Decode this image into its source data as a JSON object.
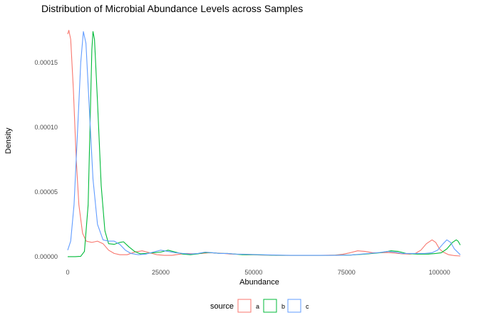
{
  "chart_data": {
    "type": "line",
    "title": "Distribution of Microbial Abundance Levels across Samples",
    "xlabel": "Abundance",
    "ylabel": "Density",
    "xlim": [
      -2500,
      106000
    ],
    "ylim": [
      -5e-06,
      0.000183
    ],
    "x_ticks": [
      0,
      25000,
      50000,
      75000,
      100000
    ],
    "x_tick_labels": [
      "0",
      "25000",
      "50000",
      "75000",
      "100000"
    ],
    "y_ticks": [
      0,
      5e-05,
      0.0001,
      0.00015
    ],
    "y_tick_labels": [
      "0.00000",
      "0.00005",
      "0.00010",
      "0.00015"
    ],
    "grid": false,
    "legend": {
      "title": "source",
      "position": "bottom",
      "items": [
        {
          "label": "a",
          "color": "#F8766D"
        },
        {
          "label": "b",
          "color": "#00BA38"
        },
        {
          "label": "c",
          "color": "#619CFF"
        }
      ]
    },
    "series": [
      {
        "name": "a",
        "color": "#F8766D",
        "points": [
          [
            0,
            0.000172
          ],
          [
            300,
            0.000175
          ],
          [
            800,
            0.000168
          ],
          [
            1500,
            0.00013
          ],
          [
            2300,
            7.5e-05
          ],
          [
            3000,
            4e-05
          ],
          [
            4000,
            1.8e-05
          ],
          [
            5000,
            1.2e-05
          ],
          [
            6500,
            1.1e-05
          ],
          [
            8000,
            1.2e-05
          ],
          [
            9500,
            1e-05
          ],
          [
            11000,
            5e-06
          ],
          [
            12500,
            2.5e-06
          ],
          [
            14000,
            1.5e-06
          ],
          [
            16000,
            1.5e-06
          ],
          [
            18000,
            3.5e-06
          ],
          [
            20000,
            4.5e-06
          ],
          [
            22000,
            3e-06
          ],
          [
            24000,
            1.5e-06
          ],
          [
            26000,
            1e-06
          ],
          [
            28000,
            1e-06
          ],
          [
            30000,
            1.8e-06
          ],
          [
            32000,
            2.5e-06
          ],
          [
            34000,
            2.2e-06
          ],
          [
            36000,
            2.5e-06
          ],
          [
            38000,
            3e-06
          ],
          [
            40000,
            2.8e-06
          ],
          [
            42000,
            2.5e-06
          ],
          [
            44000,
            2e-06
          ],
          [
            46000,
            1.8e-06
          ],
          [
            48000,
            1.5e-06
          ],
          [
            50000,
            1.5e-06
          ],
          [
            52000,
            1.2e-06
          ],
          [
            54000,
            1.2e-06
          ],
          [
            56000,
            1e-06
          ],
          [
            60000,
            1e-06
          ],
          [
            64000,
            1e-06
          ],
          [
            68000,
            1e-06
          ],
          [
            72000,
            1.2e-06
          ],
          [
            74000,
            1.8e-06
          ],
          [
            76000,
            3e-06
          ],
          [
            78000,
            4.5e-06
          ],
          [
            80000,
            4e-06
          ],
          [
            82000,
            3e-06
          ],
          [
            84000,
            3e-06
          ],
          [
            86000,
            3.2e-06
          ],
          [
            88000,
            2.8e-06
          ],
          [
            90000,
            2.2e-06
          ],
          [
            92000,
            2e-06
          ],
          [
            93500,
            2.5e-06
          ],
          [
            95000,
            5e-06
          ],
          [
            96500,
            1e-05
          ],
          [
            98000,
            1.3e-05
          ],
          [
            99000,
            1.1e-05
          ],
          [
            100000,
            6e-06
          ],
          [
            101000,
            3.5e-06
          ],
          [
            102500,
            1.5e-06
          ],
          [
            104000,
            8e-07
          ],
          [
            105600,
            5e-07
          ]
        ]
      },
      {
        "name": "b",
        "color": "#00BA38",
        "points": [
          [
            0,
            0.0
          ],
          [
            2000,
            0.0
          ],
          [
            3500,
            3e-07
          ],
          [
            4500,
            4e-06
          ],
          [
            5500,
            4e-05
          ],
          [
            6000,
            0.0001
          ],
          [
            6500,
            0.00016
          ],
          [
            6800,
            0.000174
          ],
          [
            7200,
            0.000168
          ],
          [
            8000,
            0.00012
          ],
          [
            9000,
            5.5e-05
          ],
          [
            10000,
            2e-05
          ],
          [
            11000,
            1e-05
          ],
          [
            12500,
            9.5e-06
          ],
          [
            14000,
            1.1e-05
          ],
          [
            15000,
            1.15e-05
          ],
          [
            16500,
            7.5e-06
          ],
          [
            18000,
            4e-06
          ],
          [
            19500,
            2.2e-06
          ],
          [
            21000,
            2.5e-06
          ],
          [
            23000,
            3e-06
          ],
          [
            25000,
            3.5e-06
          ],
          [
            27000,
            5e-06
          ],
          [
            29000,
            3.5e-06
          ],
          [
            31000,
            2e-06
          ],
          [
            33000,
            1.5e-06
          ],
          [
            35000,
            2.2e-06
          ],
          [
            37000,
            3.2e-06
          ],
          [
            39000,
            3e-06
          ],
          [
            41000,
            2.5e-06
          ],
          [
            43000,
            2.5e-06
          ],
          [
            45000,
            2e-06
          ],
          [
            47000,
            1.5e-06
          ],
          [
            50000,
            1.5e-06
          ],
          [
            54000,
            1.2e-06
          ],
          [
            58000,
            1e-06
          ],
          [
            64000,
            1e-06
          ],
          [
            70000,
            1e-06
          ],
          [
            76000,
            1.2e-06
          ],
          [
            80000,
            2e-06
          ],
          [
            84000,
            3e-06
          ],
          [
            87000,
            4.5e-06
          ],
          [
            89000,
            4e-06
          ],
          [
            91000,
            2.5e-06
          ],
          [
            94000,
            2e-06
          ],
          [
            97000,
            2e-06
          ],
          [
            99000,
            2.5e-06
          ],
          [
            100500,
            3e-06
          ],
          [
            102000,
            6e-06
          ],
          [
            103500,
            1.1e-05
          ],
          [
            104500,
            1.3e-05
          ],
          [
            105000,
            1.2e-05
          ],
          [
            105600,
            9e-06
          ]
        ]
      },
      {
        "name": "c",
        "color": "#619CFF",
        "points": [
          [
            0,
            5e-06
          ],
          [
            800,
            1.2e-05
          ],
          [
            1700,
            4e-05
          ],
          [
            2700,
            0.0001
          ],
          [
            3500,
            0.00015
          ],
          [
            4200,
            0.000174
          ],
          [
            4900,
            0.000165
          ],
          [
            5800,
            0.000115
          ],
          [
            6800,
            6e-05
          ],
          [
            8000,
            2.5e-05
          ],
          [
            9500,
            1.3e-05
          ],
          [
            11000,
            1.2e-05
          ],
          [
            12500,
            1.2e-05
          ],
          [
            14000,
            9.5e-06
          ],
          [
            15500,
            5e-06
          ],
          [
            17000,
            2.5e-06
          ],
          [
            19000,
            1.5e-06
          ],
          [
            21000,
            2e-06
          ],
          [
            23000,
            3.5e-06
          ],
          [
            25000,
            5e-06
          ],
          [
            27000,
            4e-06
          ],
          [
            29000,
            3e-06
          ],
          [
            31000,
            2.5e-06
          ],
          [
            33000,
            2e-06
          ],
          [
            35000,
            2.5e-06
          ],
          [
            37000,
            3.5e-06
          ],
          [
            39000,
            3e-06
          ],
          [
            41000,
            2.5e-06
          ],
          [
            43000,
            2.5e-06
          ],
          [
            45000,
            2e-06
          ],
          [
            48000,
            1.8e-06
          ],
          [
            52000,
            1.5e-06
          ],
          [
            56000,
            1.2e-06
          ],
          [
            60000,
            1e-06
          ],
          [
            66000,
            1e-06
          ],
          [
            72000,
            1e-06
          ],
          [
            76000,
            1.2e-06
          ],
          [
            80000,
            2.2e-06
          ],
          [
            84000,
            3.2e-06
          ],
          [
            86000,
            4e-06
          ],
          [
            88000,
            3.5e-06
          ],
          [
            90000,
            2.5e-06
          ],
          [
            93000,
            2.5e-06
          ],
          [
            96000,
            2.5e-06
          ],
          [
            98000,
            3e-06
          ],
          [
            99500,
            5e-06
          ],
          [
            101000,
            1e-05
          ],
          [
            102000,
            1.3e-05
          ],
          [
            103000,
            1.1e-05
          ],
          [
            104000,
            6e-06
          ],
          [
            105600,
            1.5e-06
          ]
        ]
      }
    ]
  }
}
